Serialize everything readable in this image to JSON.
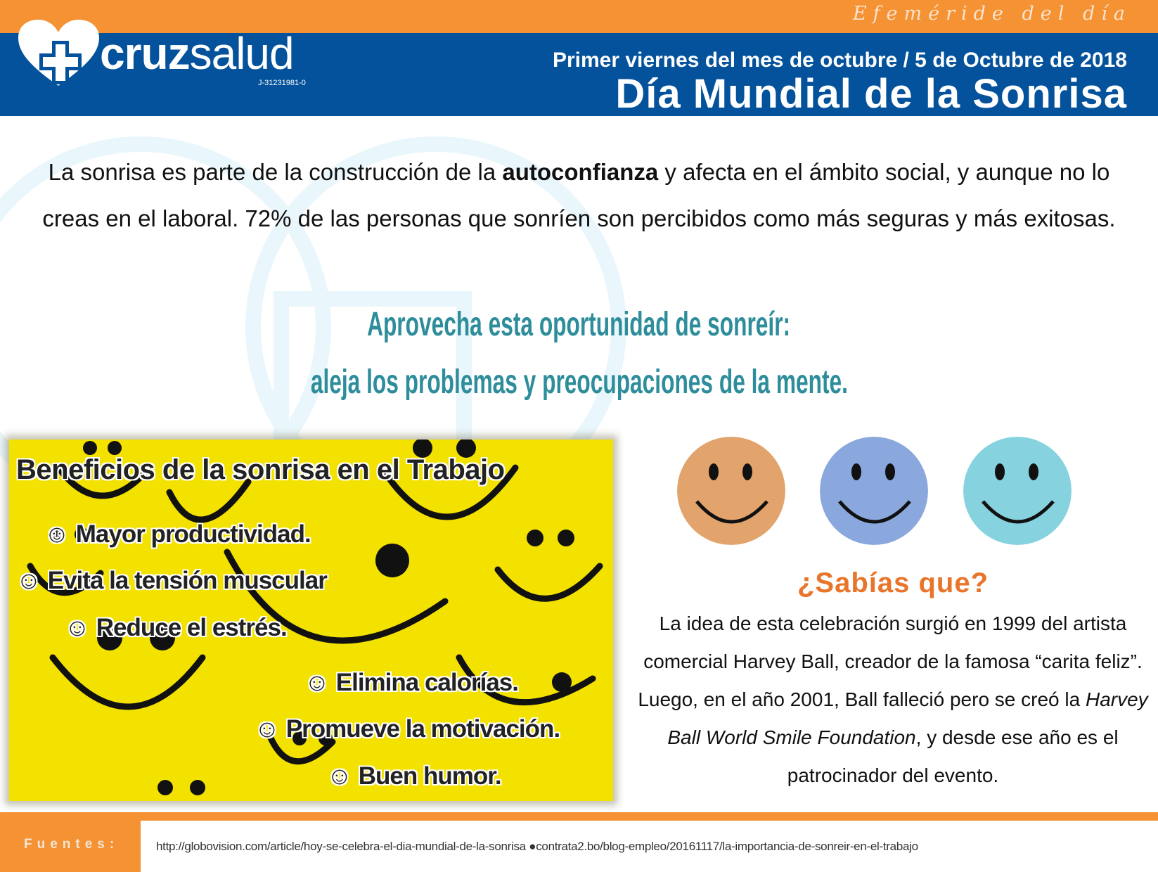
{
  "header": {
    "ribbon": "Efeméride del día",
    "logo": {
      "bold": "cruz",
      "light": "salud",
      "id": "J-31231981-0"
    },
    "subtitle": "Primer viernes del mes de octubre / 5 de Octubre de 2018",
    "title": "Día Mundial de la Sonrisa"
  },
  "intro": {
    "before": "La sonrisa es parte de la construcción de la ",
    "bold": "autoconfianza",
    "after": " y afecta en el ámbito social, y aunque no lo creas en el laboral. 72% de las personas que sonríen son percibidos como más seguras y más exitosas."
  },
  "callout": {
    "line1": "Aprovecha esta oportunidad de sonreír:",
    "line2": "aleja los problemas y preocupaciones de la mente."
  },
  "benefits": {
    "title": "Beneficios de la sonrisa en el Trabajo",
    "icon": "☺",
    "items": [
      "Mayor productividad.",
      "Evita la tensión muscular",
      "Reduce el estrés.",
      "Elimina calorías.",
      "Promueve la motivación.",
      "Buen humor."
    ]
  },
  "faces": {
    "colors": [
      "#e2a46c",
      "#8aa8dd",
      "#86d2df"
    ]
  },
  "fact": {
    "heading": "¿Sabías que?",
    "before": "La idea de esta celebración surgió en 1999 del artista comercial Harvey Ball, creador de la famosa “carita feliz”. Luego, en el año 2001, Ball falleció pero se creó la ",
    "italic": "Harvey Ball World Smile Foundation",
    "after": ", y desde ese año es el patrocinador del evento."
  },
  "footer": {
    "label": "Fuentes:",
    "sources": "http://globovision.com/article/hoy-se-celebra-el-dia-mundial-de-la-sonrisa ●contrata2.bo/blog-empleo/20161117/la-importancia-de-sonreir-en-el-trabajo"
  },
  "colors": {
    "orange": "#f59233",
    "blue": "#03529b",
    "teal": "#2e8d9b",
    "yellow": "#f3e100",
    "accent": "#e8752a"
  }
}
